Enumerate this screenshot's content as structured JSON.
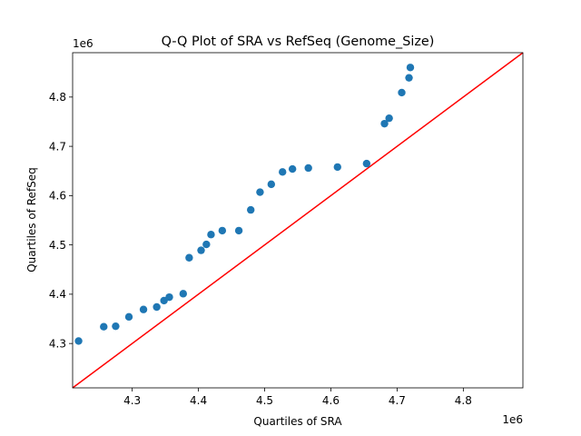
{
  "chart_data": {
    "type": "scatter",
    "title": "Q-Q Plot of SRA vs RefSeq (Genome_Size)",
    "xlabel": "Quartiles of SRA",
    "ylabel": "Quartiles of RefSeq",
    "x_offset_label": "1e6",
    "y_offset_label": "1e6",
    "xlim": [
      4.21,
      4.89
    ],
    "ylim": [
      4.21,
      4.89
    ],
    "xticks": [
      4.3,
      4.4,
      4.5,
      4.6,
      4.7,
      4.8
    ],
    "xtick_labels": [
      "4.3",
      "4.4",
      "4.5",
      "4.6",
      "4.7",
      "4.8"
    ],
    "yticks": [
      4.3,
      4.4,
      4.5,
      4.6,
      4.7,
      4.8
    ],
    "ytick_labels": [
      "4.3",
      "4.4",
      "4.5",
      "4.6",
      "4.7",
      "4.8"
    ],
    "grid": false,
    "points": [
      {
        "x": 4.219,
        "y": 4.305
      },
      {
        "x": 4.257,
        "y": 4.334
      },
      {
        "x": 4.275,
        "y": 4.335
      },
      {
        "x": 4.295,
        "y": 4.354
      },
      {
        "x": 4.317,
        "y": 4.369
      },
      {
        "x": 4.337,
        "y": 4.374
      },
      {
        "x": 4.348,
        "y": 4.387
      },
      {
        "x": 4.356,
        "y": 4.394
      },
      {
        "x": 4.377,
        "y": 4.401
      },
      {
        "x": 4.386,
        "y": 4.474
      },
      {
        "x": 4.404,
        "y": 4.489
      },
      {
        "x": 4.412,
        "y": 4.501
      },
      {
        "x": 4.419,
        "y": 4.521
      },
      {
        "x": 4.436,
        "y": 4.529
      },
      {
        "x": 4.461,
        "y": 4.529
      },
      {
        "x": 4.479,
        "y": 4.571
      },
      {
        "x": 4.493,
        "y": 4.607
      },
      {
        "x": 4.51,
        "y": 4.623
      },
      {
        "x": 4.527,
        "y": 4.648
      },
      {
        "x": 4.542,
        "y": 4.654
      },
      {
        "x": 4.566,
        "y": 4.656
      },
      {
        "x": 4.61,
        "y": 4.658
      },
      {
        "x": 4.654,
        "y": 4.665
      },
      {
        "x": 4.681,
        "y": 4.746
      },
      {
        "x": 4.688,
        "y": 4.757
      },
      {
        "x": 4.707,
        "y": 4.809
      },
      {
        "x": 4.718,
        "y": 4.839
      },
      {
        "x": 4.72,
        "y": 4.86
      }
    ],
    "reference_line": {
      "x": [
        4.21,
        4.89
      ],
      "y": [
        4.21,
        4.89
      ],
      "color": "#ff0000"
    },
    "marker_color": "#1f77b4"
  }
}
